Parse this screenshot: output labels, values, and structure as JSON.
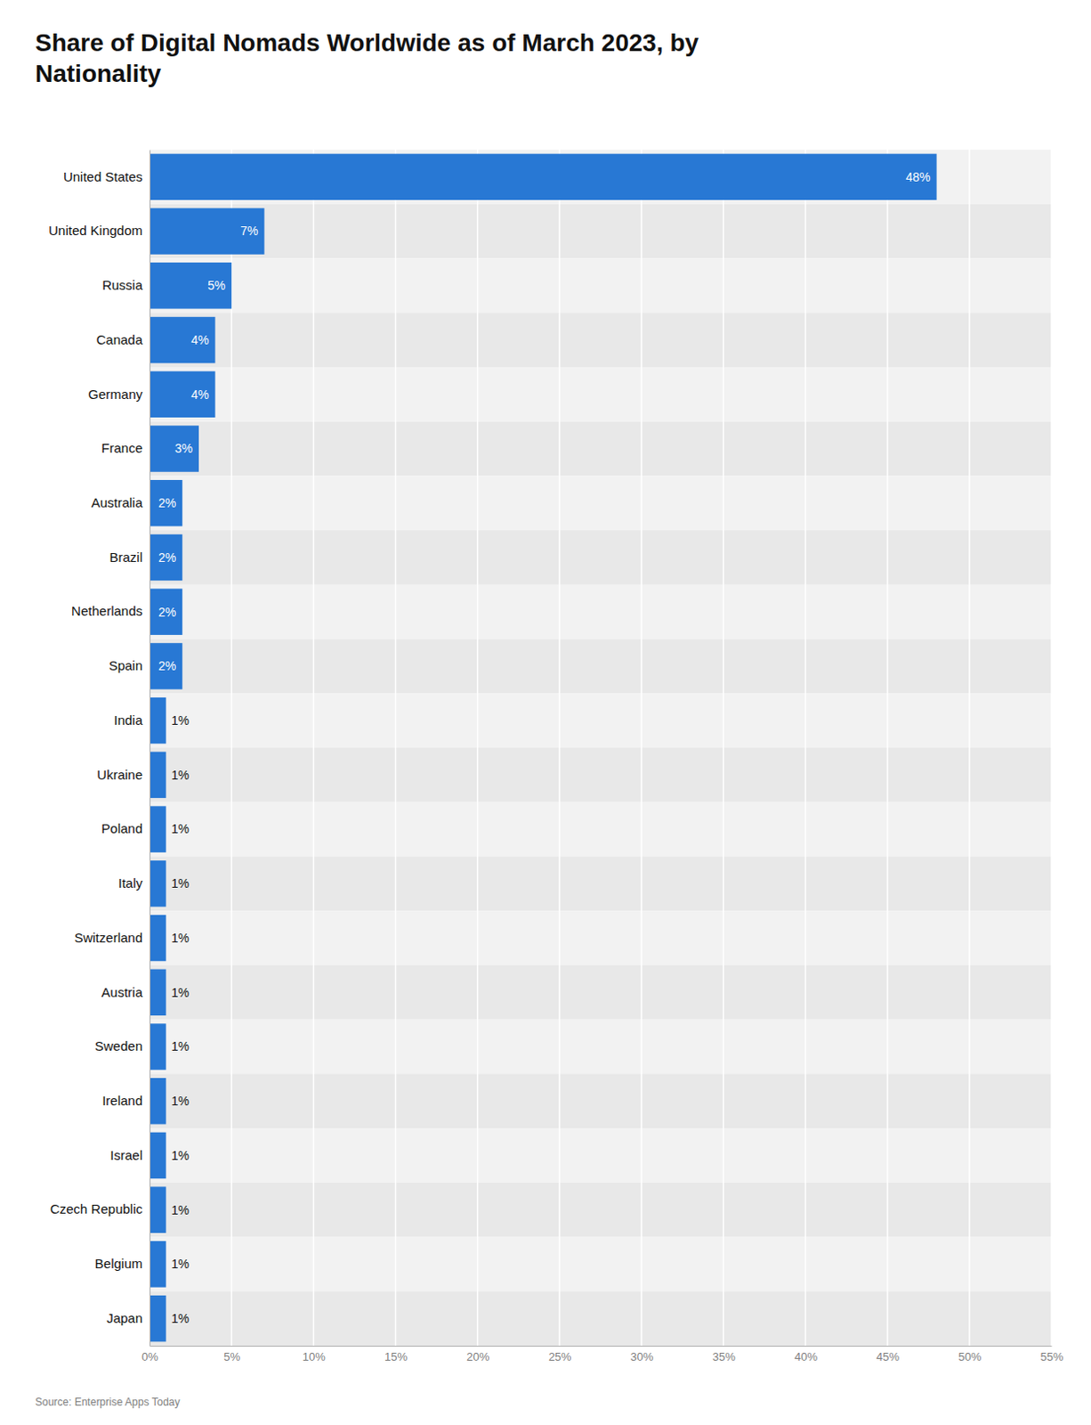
{
  "chart_data": {
    "type": "bar",
    "orientation": "horizontal",
    "title": "Share of Digital Nomads Worldwide as of March 2023, by\nNationality",
    "source": "Source: Enterprise Apps Today",
    "categories": [
      "United States",
      "United Kingdom",
      "Russia",
      "Canada",
      "Germany",
      "France",
      "Australia",
      "Brazil",
      "Netherlands",
      "Spain",
      "India",
      "Ukraine",
      "Poland",
      "Italy",
      "Switzerland",
      "Austria",
      "Sweden",
      "Ireland",
      "Israel",
      "Czech Republic",
      "Belgium",
      "Japan"
    ],
    "values": [
      48,
      7,
      5,
      4,
      4,
      3,
      2,
      2,
      2,
      2,
      1,
      1,
      1,
      1,
      1,
      1,
      1,
      1,
      1,
      1,
      1,
      1
    ],
    "value_labels": [
      "48%",
      "7%",
      "5%",
      "4%",
      "4%",
      "3%",
      "2%",
      "2%",
      "2%",
      "2%",
      "1%",
      "1%",
      "1%",
      "1%",
      "1%",
      "1%",
      "1%",
      "1%",
      "1%",
      "1%",
      "1%",
      "1%"
    ],
    "data_labels": true,
    "color": "#2878d4",
    "xlim": [
      0,
      55
    ],
    "xticks": [
      {
        "value": 0,
        "label": "0%"
      },
      {
        "value": 5,
        "label": "5%"
      },
      {
        "value": 10,
        "label": "10%"
      },
      {
        "value": 15,
        "label": "15%"
      },
      {
        "value": 20,
        "label": "20%"
      },
      {
        "value": 25,
        "label": "25%"
      },
      {
        "value": 30,
        "label": "30%"
      },
      {
        "value": 35,
        "label": "35%"
      },
      {
        "value": 40,
        "label": "40%"
      },
      {
        "value": 45,
        "label": "45%"
      },
      {
        "value": 50,
        "label": "50%"
      },
      {
        "value": 55,
        "label": "55%"
      }
    ],
    "grid": true
  }
}
